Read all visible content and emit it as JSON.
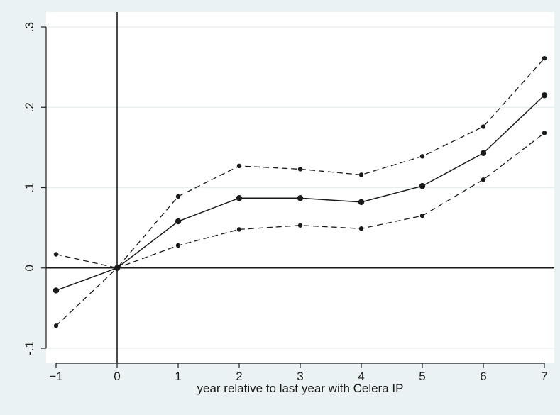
{
  "chart_data": {
    "type": "line",
    "title": "",
    "xlabel": "year relative to last year with Celera IP",
    "ylabel": "",
    "xlim": [
      -1,
      7
    ],
    "ylim": [
      -0.1,
      0.3
    ],
    "x_ticks": [
      -1,
      0,
      1,
      2,
      3,
      4,
      5,
      6,
      7
    ],
    "x_tick_labels": [
      "−1",
      "0",
      "1",
      "2",
      "3",
      "4",
      "5",
      "6",
      "7"
    ],
    "y_ticks": [
      -0.1,
      0,
      0.1,
      0.2,
      0.3
    ],
    "y_tick_labels": [
      "-.1",
      "0",
      ".1",
      ".2",
      ".3"
    ],
    "grid": "horizontal",
    "reference_lines": {
      "x": 0,
      "y": 0
    },
    "x": [
      -1,
      0,
      1,
      2,
      3,
      4,
      5,
      6,
      7
    ],
    "series": [
      {
        "style": "solid",
        "values": [
          -0.028,
          0.0,
          0.058,
          0.087,
          0.087,
          0.082,
          0.102,
          0.143,
          0.215
        ]
      },
      {
        "style": "dashed",
        "values": [
          0.017,
          0.0,
          0.089,
          0.127,
          0.123,
          0.116,
          0.139,
          0.176,
          0.261
        ]
      },
      {
        "style": "dashed",
        "values": [
          -0.072,
          0.0,
          0.028,
          0.048,
          0.053,
          0.049,
          0.065,
          0.11,
          0.168
        ]
      }
    ],
    "colors": {
      "background": "#eaf2f3",
      "plot_area": "#ffffff",
      "line": "#1a1a1a",
      "grid": "#e6eef0"
    }
  }
}
